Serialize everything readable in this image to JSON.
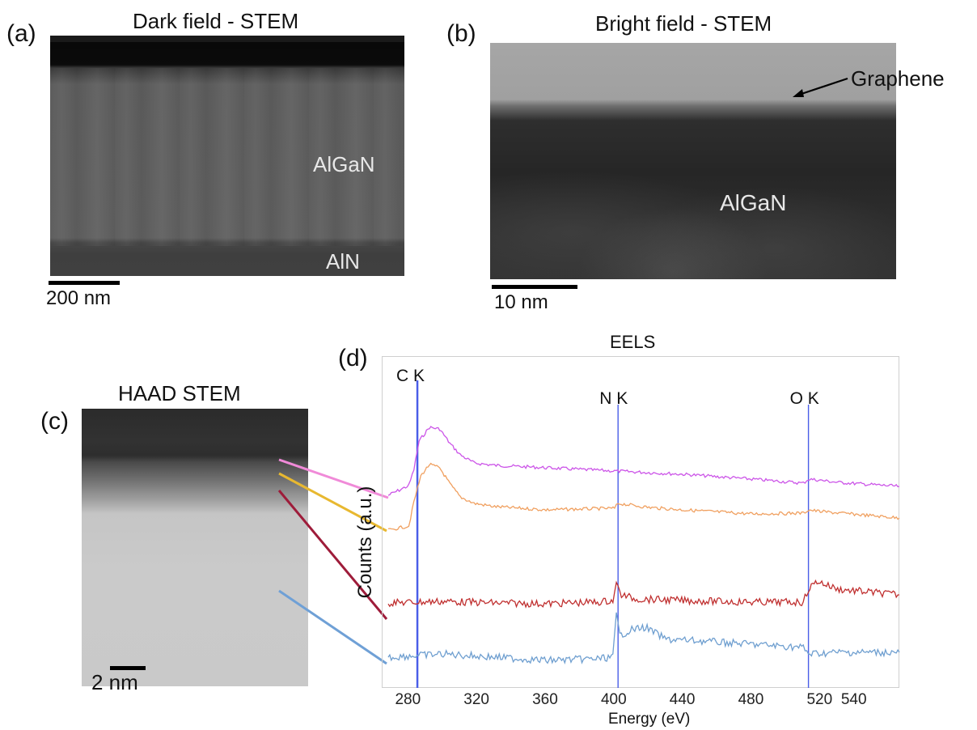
{
  "panels": {
    "a": {
      "label": "(a)",
      "title": "Dark field - STEM",
      "layer_top": "AlGaN",
      "layer_bottom": "AlN",
      "scale_bar": "200 nm"
    },
    "b": {
      "label": "(b)",
      "title": "Bright field - STEM",
      "annotation": "Graphene",
      "layer": "AlGaN",
      "scale_bar": "10 nm"
    },
    "c": {
      "label": "(c)",
      "title": "HAAD STEM",
      "scale_bar": "2 nm"
    },
    "d": {
      "label": "(d)",
      "title": "EELS"
    }
  },
  "chart_data": {
    "type": "line",
    "title": "EELS",
    "xlabel": "Energy (eV)",
    "ylabel": "Counts (a.u.)",
    "xlim": [
      268,
      566
    ],
    "xticks": [
      280,
      320,
      360,
      400,
      440,
      480,
      520,
      540
    ],
    "xtick_labels": [
      "280",
      "320",
      "360",
      "400",
      "440",
      "480",
      "520",
      "540"
    ],
    "edges": [
      {
        "label": "C K",
        "x": 285
      },
      {
        "label": "N K",
        "x": 402
      },
      {
        "label": "O K",
        "x": 513
      }
    ],
    "colors": {
      "pink": "#cc55e8",
      "orange": "#f0a060",
      "red": "#c03030",
      "blue": "#6f9fd0",
      "edge": "#4a5ee8"
    },
    "series": [
      {
        "color": "#cc55e8",
        "points": [
          [
            268,
            612
          ],
          [
            280,
            600
          ],
          [
            283,
            580
          ],
          [
            286,
            545
          ],
          [
            292,
            528
          ],
          [
            298,
            530
          ],
          [
            304,
            548
          ],
          [
            310,
            562
          ],
          [
            318,
            572
          ],
          [
            330,
            575
          ],
          [
            360,
            578
          ],
          [
            400,
            582
          ],
          [
            440,
            586
          ],
          [
            480,
            592
          ],
          [
            510,
            597
          ],
          [
            513,
            592
          ],
          [
            518,
            593
          ],
          [
            530,
            596
          ],
          [
            566,
            601
          ]
        ]
      },
      {
        "color": "#f0a060",
        "points": [
          [
            268,
            655
          ],
          [
            280,
            650
          ],
          [
            283,
            620
          ],
          [
            287,
            588
          ],
          [
            292,
            574
          ],
          [
            298,
            578
          ],
          [
            304,
            598
          ],
          [
            310,
            614
          ],
          [
            318,
            622
          ],
          [
            330,
            626
          ],
          [
            360,
            630
          ],
          [
            400,
            628
          ],
          [
            402,
            622
          ],
          [
            420,
            627
          ],
          [
            440,
            630
          ],
          [
            480,
            635
          ],
          [
            510,
            634
          ],
          [
            513,
            630
          ],
          [
            520,
            632
          ],
          [
            566,
            640
          ]
        ]
      },
      {
        "color": "#c03030",
        "points": [
          [
            268,
            745
          ],
          [
            300,
            743
          ],
          [
            330,
            745
          ],
          [
            360,
            746
          ],
          [
            390,
            744
          ],
          [
            399,
            742
          ],
          [
            401,
            722
          ],
          [
            404,
            735
          ],
          [
            412,
            740
          ],
          [
            440,
            742
          ],
          [
            480,
            744
          ],
          [
            510,
            744
          ],
          [
            513,
            728
          ],
          [
            518,
            718
          ],
          [
            530,
            728
          ],
          [
            566,
            735
          ]
        ]
      },
      {
        "color": "#6f9fd0",
        "points": [
          [
            268,
            812
          ],
          [
            300,
            808
          ],
          [
            330,
            812
          ],
          [
            360,
            816
          ],
          [
            390,
            814
          ],
          [
            399,
            812
          ],
          [
            401,
            760
          ],
          [
            403,
            785
          ],
          [
            410,
            778
          ],
          [
            418,
            775
          ],
          [
            430,
            790
          ],
          [
            450,
            792
          ],
          [
            480,
            796
          ],
          [
            510,
            800
          ],
          [
            513,
            808
          ],
          [
            530,
            806
          ],
          [
            566,
            806
          ]
        ]
      }
    ]
  }
}
